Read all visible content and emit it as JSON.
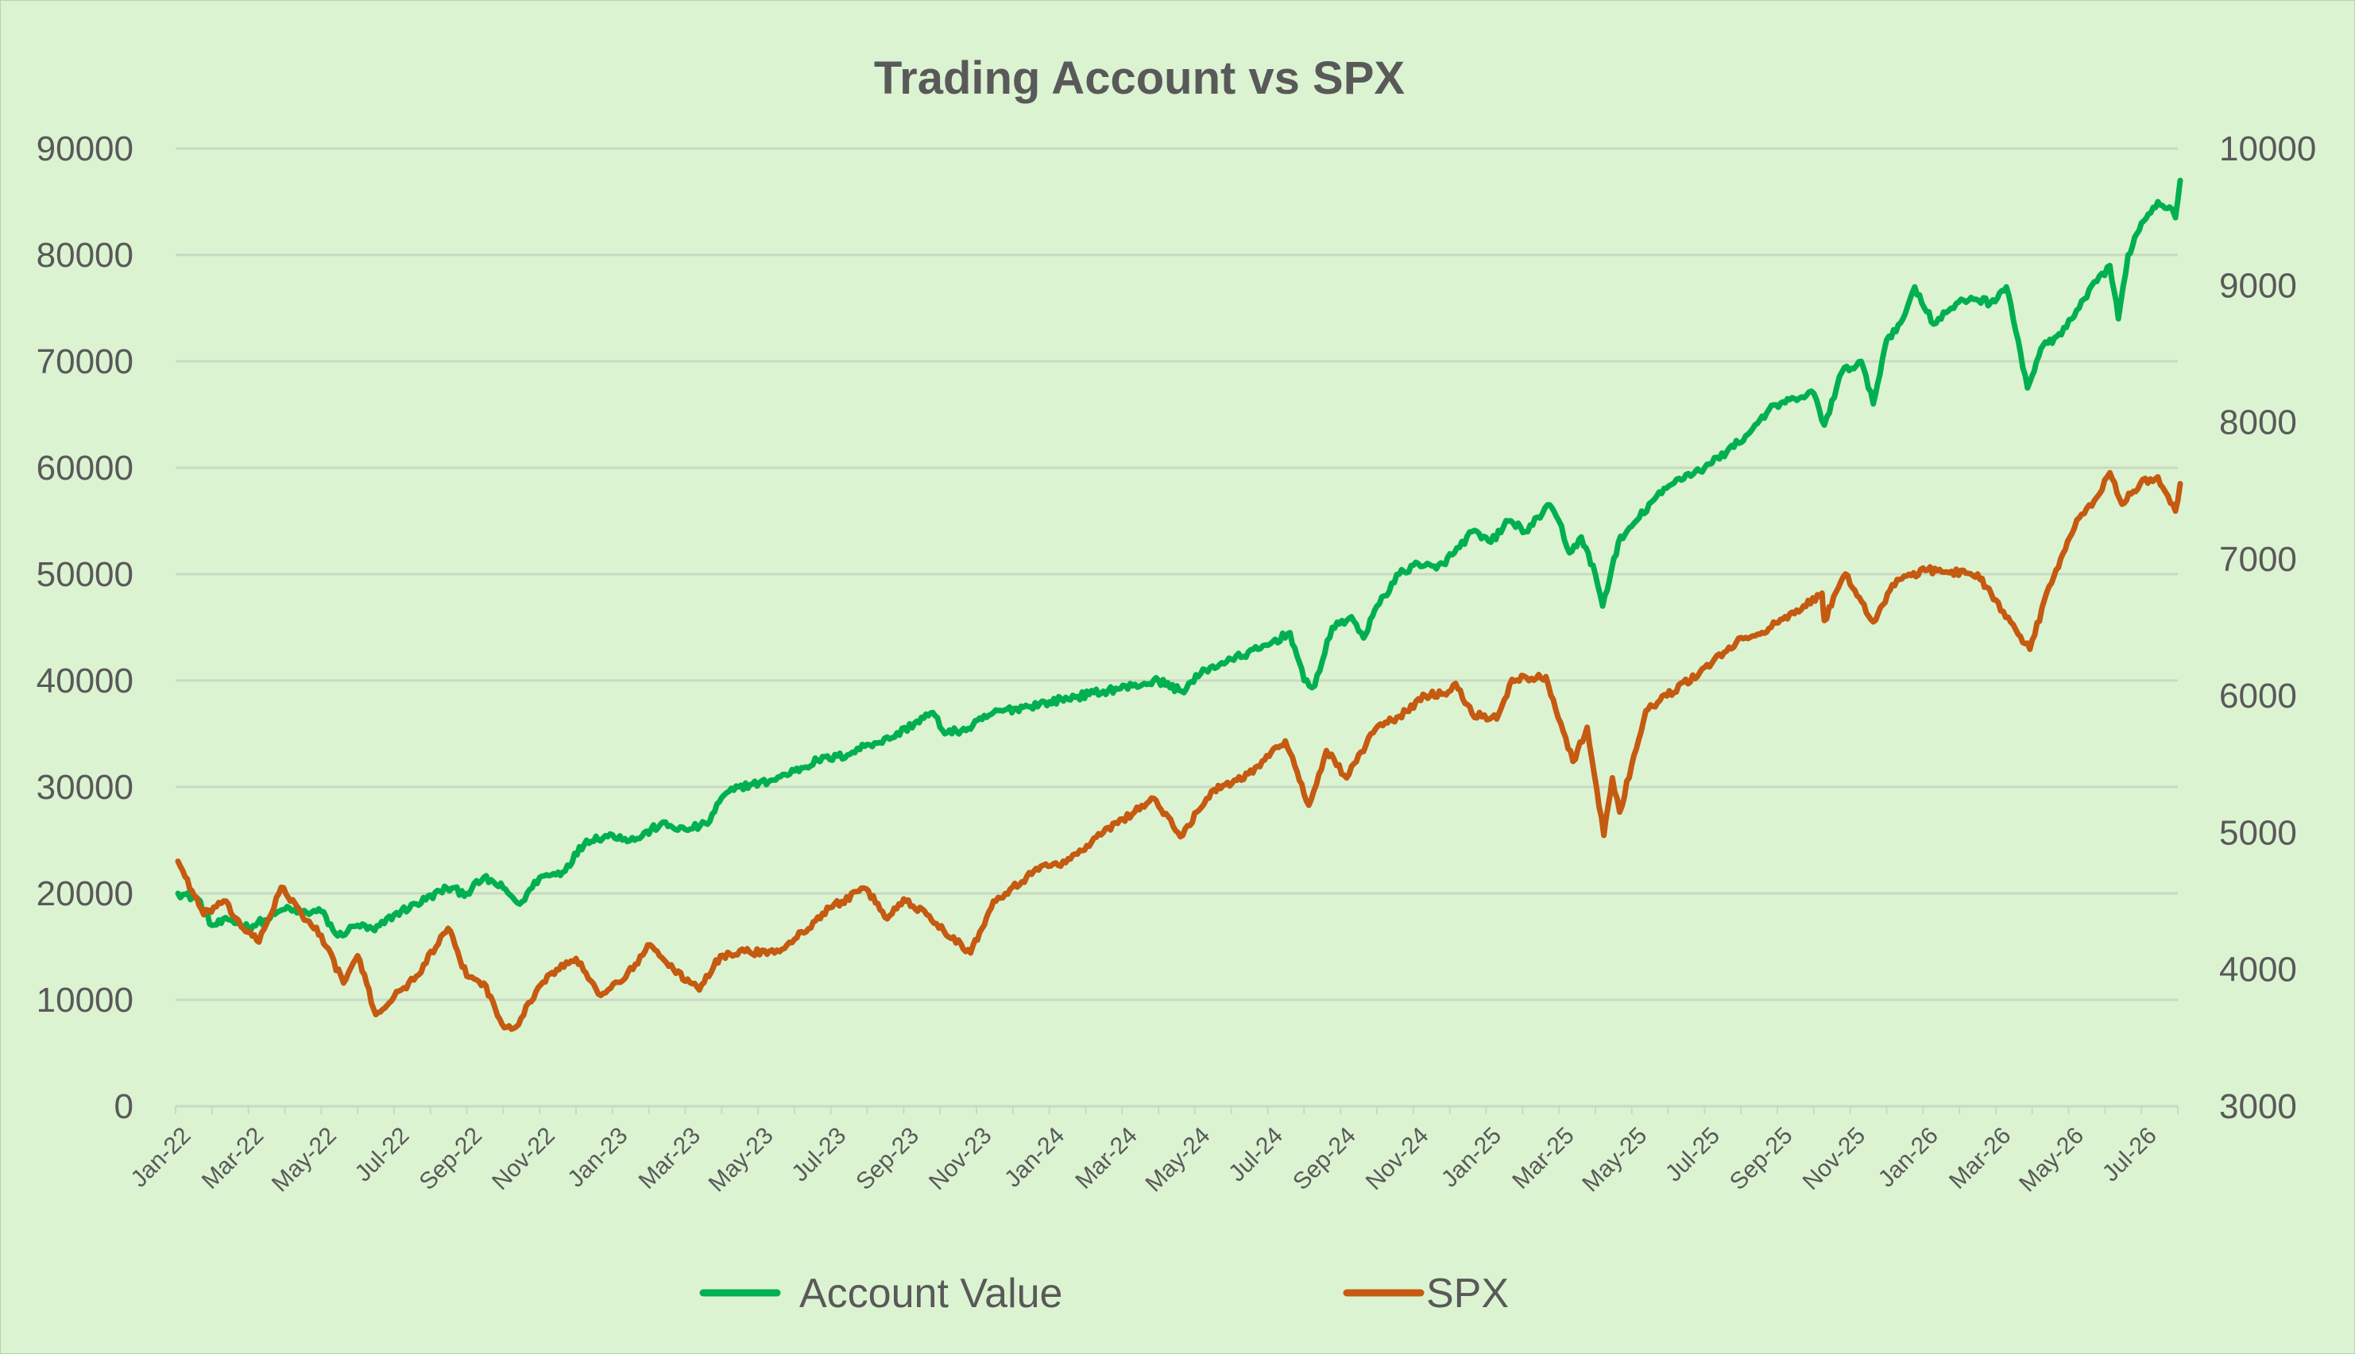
{
  "chart_data": {
    "type": "line",
    "title": "Trading Account vs SPX",
    "x_start": "Jan-22",
    "x_end": "Aug-26",
    "x_tick_labels": [
      "Jan-22",
      "Mar-22",
      "May-22",
      "Jul-22",
      "Sep-22",
      "Nov-22",
      "Jan-23",
      "Mar-23",
      "May-23",
      "Jul-23",
      "Sep-23",
      "Nov-23",
      "Jan-24",
      "Mar-24",
      "May-24",
      "Jul-24",
      "Sep-24",
      "Nov-24",
      "Jan-25",
      "Mar-25",
      "May-25",
      "Jul-25",
      "Sep-25",
      "Nov-25",
      "Jan-26",
      "Mar-26",
      "May-26",
      "Jul-26"
    ],
    "y_left": {
      "min": 0,
      "max": 90000,
      "ticks": [
        "0",
        "10000",
        "20000",
        "30000",
        "40000",
        "50000",
        "60000",
        "70000",
        "80000",
        "90000"
      ]
    },
    "y_right": {
      "min": 3000,
      "max": 10000,
      "ticks": [
        "3000",
        "4000",
        "5000",
        "6000",
        "7000",
        "8000",
        "9000",
        "10000"
      ]
    },
    "grid": "horizontal",
    "legend_position": "bottom",
    "series": [
      {
        "name": "Account Value",
        "axis": "left",
        "color": "#00b050",
        "points": [
          [
            "2022-01-03",
            20000
          ],
          [
            "2022-01-20",
            19500
          ],
          [
            "2022-02-01",
            17000
          ],
          [
            "2022-02-15",
            17500
          ],
          [
            "2022-03-01",
            16800
          ],
          [
            "2022-03-15",
            17500
          ],
          [
            "2022-04-01",
            18500
          ],
          [
            "2022-04-15",
            18200
          ],
          [
            "2022-05-01",
            18300
          ],
          [
            "2022-05-15",
            16000
          ],
          [
            "2022-06-01",
            17000
          ],
          [
            "2022-06-15",
            16500
          ],
          [
            "2022-07-01",
            18000
          ],
          [
            "2022-07-20",
            19000
          ],
          [
            "2022-08-15",
            20500
          ],
          [
            "2022-09-01",
            20000
          ],
          [
            "2022-09-15",
            21500
          ],
          [
            "2022-10-01",
            20500
          ],
          [
            "2022-10-15",
            19000
          ],
          [
            "2022-11-01",
            21500
          ],
          [
            "2022-11-20",
            22000
          ],
          [
            "2022-12-10",
            25000
          ],
          [
            "2023-01-01",
            25500
          ],
          [
            "2023-01-20",
            25000
          ],
          [
            "2023-02-10",
            26500
          ],
          [
            "2023-03-01",
            26000
          ],
          [
            "2023-03-20",
            26500
          ],
          [
            "2023-04-01",
            29000
          ],
          [
            "2023-04-15",
            30000
          ],
          [
            "2023-05-10",
            30500
          ],
          [
            "2023-06-01",
            31500
          ],
          [
            "2023-06-20",
            32500
          ],
          [
            "2023-07-15",
            33000
          ],
          [
            "2023-08-01",
            34000
          ],
          [
            "2023-08-20",
            34500
          ],
          [
            "2023-09-10",
            36000
          ],
          [
            "2023-09-25",
            37000
          ],
          [
            "2023-10-05",
            35000
          ],
          [
            "2023-10-25",
            35500
          ],
          [
            "2023-11-15",
            37000
          ],
          [
            "2023-12-10",
            37500
          ],
          [
            "2024-01-01",
            38000
          ],
          [
            "2024-01-25",
            38500
          ],
          [
            "2024-02-15",
            39000
          ],
          [
            "2024-03-10",
            39500
          ],
          [
            "2024-04-01",
            40000
          ],
          [
            "2024-04-20",
            39000
          ],
          [
            "2024-05-10",
            41000
          ],
          [
            "2024-06-01",
            42000
          ],
          [
            "2024-06-25",
            43000
          ],
          [
            "2024-07-20",
            44500
          ],
          [
            "2024-08-01",
            40000
          ],
          [
            "2024-08-10",
            39500
          ],
          [
            "2024-08-25",
            45000
          ],
          [
            "2024-09-10",
            46000
          ],
          [
            "2024-09-20",
            44000
          ],
          [
            "2024-10-01",
            47000
          ],
          [
            "2024-10-20",
            50000
          ],
          [
            "2024-11-05",
            51000
          ],
          [
            "2024-11-20",
            50500
          ],
          [
            "2024-12-05",
            52000
          ],
          [
            "2024-12-20",
            54000
          ],
          [
            "2025-01-05",
            53000
          ],
          [
            "2025-01-20",
            55000
          ],
          [
            "2025-02-05",
            54000
          ],
          [
            "2025-02-20",
            56500
          ],
          [
            "2025-03-01",
            55000
          ],
          [
            "2025-03-10",
            52000
          ],
          [
            "2025-03-20",
            53500
          ],
          [
            "2025-04-01",
            50000
          ],
          [
            "2025-04-07",
            47000
          ],
          [
            "2025-04-20",
            53000
          ],
          [
            "2025-05-01",
            54500
          ],
          [
            "2025-05-20",
            57000
          ],
          [
            "2025-06-10",
            59000
          ],
          [
            "2025-07-01",
            60000
          ],
          [
            "2025-07-20",
            61500
          ],
          [
            "2025-08-05",
            63000
          ],
          [
            "2025-08-25",
            65500
          ],
          [
            "2025-09-15",
            66500
          ],
          [
            "2025-10-01",
            67000
          ],
          [
            "2025-10-10",
            64000
          ],
          [
            "2025-10-25",
            69000
          ],
          [
            "2025-11-10",
            70000
          ],
          [
            "2025-11-20",
            66000
          ],
          [
            "2025-12-01",
            72000
          ],
          [
            "2025-12-15",
            74000
          ],
          [
            "2025-12-25",
            77000
          ],
          [
            "2026-01-10",
            73500
          ],
          [
            "2026-01-25",
            75000
          ],
          [
            "2026-02-10",
            76000
          ],
          [
            "2026-02-25",
            75500
          ],
          [
            "2026-03-10",
            77000
          ],
          [
            "2026-03-20",
            72000
          ],
          [
            "2026-03-28",
            67500
          ],
          [
            "2026-04-10",
            71500
          ],
          [
            "2026-04-25",
            72500
          ],
          [
            "2026-05-10",
            75000
          ],
          [
            "2026-05-25",
            77500
          ],
          [
            "2026-06-05",
            79000
          ],
          [
            "2026-06-12",
            74000
          ],
          [
            "2026-06-20",
            80000
          ],
          [
            "2026-07-01",
            83000
          ],
          [
            "2026-07-15",
            85000
          ],
          [
            "2026-07-25",
            84500
          ],
          [
            "2026-07-30",
            83500
          ],
          [
            "2026-08-03",
            87000
          ]
        ]
      },
      {
        "name": "SPX",
        "axis": "right",
        "color": "#c55a11",
        "points": [
          [
            "2022-01-03",
            4790
          ],
          [
            "2022-01-25",
            4400
          ],
          [
            "2022-02-10",
            4500
          ],
          [
            "2022-02-25",
            4300
          ],
          [
            "2022-03-10",
            4200
          ],
          [
            "2022-03-29",
            4600
          ],
          [
            "2022-04-15",
            4400
          ],
          [
            "2022-05-01",
            4250
          ],
          [
            "2022-05-20",
            3900
          ],
          [
            "2022-06-01",
            4100
          ],
          [
            "2022-06-16",
            3670
          ],
          [
            "2022-07-01",
            3800
          ],
          [
            "2022-07-20",
            3950
          ],
          [
            "2022-08-16",
            4300
          ],
          [
            "2022-09-01",
            3950
          ],
          [
            "2022-09-15",
            3900
          ],
          [
            "2022-09-30",
            3600
          ],
          [
            "2022-10-12",
            3580
          ],
          [
            "2022-10-31",
            3870
          ],
          [
            "2022-11-15",
            4000
          ],
          [
            "2022-12-01",
            4080
          ],
          [
            "2022-12-20",
            3820
          ],
          [
            "2023-01-10",
            3920
          ],
          [
            "2023-02-02",
            4180
          ],
          [
            "2023-02-20",
            4000
          ],
          [
            "2023-03-13",
            3850
          ],
          [
            "2023-03-31",
            4100
          ],
          [
            "2023-04-20",
            4130
          ],
          [
            "2023-05-15",
            4120
          ],
          [
            "2023-06-01",
            4220
          ],
          [
            "2023-06-30",
            4450
          ],
          [
            "2023-07-31",
            4590
          ],
          [
            "2023-08-18",
            4370
          ],
          [
            "2023-09-01",
            4515
          ],
          [
            "2023-09-20",
            4400
          ],
          [
            "2023-10-27",
            4120
          ],
          [
            "2023-11-15",
            4500
          ],
          [
            "2023-12-29",
            4770
          ],
          [
            "2024-01-15",
            4780
          ],
          [
            "2024-02-15",
            5000
          ],
          [
            "2024-03-28",
            5250
          ],
          [
            "2024-04-19",
            4970
          ],
          [
            "2024-05-15",
            5300
          ],
          [
            "2024-06-15",
            5430
          ],
          [
            "2024-07-16",
            5670
          ],
          [
            "2024-08-05",
            5200
          ],
          [
            "2024-08-20",
            5600
          ],
          [
            "2024-09-06",
            5400
          ],
          [
            "2024-09-30",
            5760
          ],
          [
            "2024-10-20",
            5850
          ],
          [
            "2024-11-11",
            6000
          ],
          [
            "2024-11-30",
            6030
          ],
          [
            "2024-12-06",
            6090
          ],
          [
            "2024-12-20",
            5870
          ],
          [
            "2025-01-10",
            5830
          ],
          [
            "2025-01-23",
            6120
          ],
          [
            "2025-02-19",
            6140
          ],
          [
            "2025-03-13",
            5520
          ],
          [
            "2025-03-25",
            5770
          ],
          [
            "2025-04-08",
            4980
          ],
          [
            "2025-04-15",
            5400
          ],
          [
            "2025-04-21",
            5150
          ],
          [
            "2025-05-13",
            5890
          ],
          [
            "2025-06-27",
            6170
          ],
          [
            "2025-07-28",
            6390
          ],
          [
            "2025-08-15",
            6450
          ],
          [
            "2025-09-15",
            6600
          ],
          [
            "2025-10-08",
            6750
          ],
          [
            "2025-10-10",
            6550
          ],
          [
            "2025-10-28",
            6890
          ],
          [
            "2025-11-20",
            6540
          ],
          [
            "2025-12-10",
            6850
          ],
          [
            "2026-01-05",
            6920
          ],
          [
            "2026-02-15",
            6890
          ],
          [
            "2026-03-01",
            6700
          ],
          [
            "2026-03-20",
            6450
          ],
          [
            "2026-03-30",
            6340
          ],
          [
            "2026-04-15",
            6800
          ],
          [
            "2026-05-10",
            7300
          ],
          [
            "2026-05-25",
            7450
          ],
          [
            "2026-06-05",
            7630
          ],
          [
            "2026-06-15",
            7400
          ],
          [
            "2026-06-30",
            7550
          ],
          [
            "2026-07-15",
            7600
          ],
          [
            "2026-07-30",
            7350
          ],
          [
            "2026-08-03",
            7550
          ]
        ]
      }
    ]
  }
}
